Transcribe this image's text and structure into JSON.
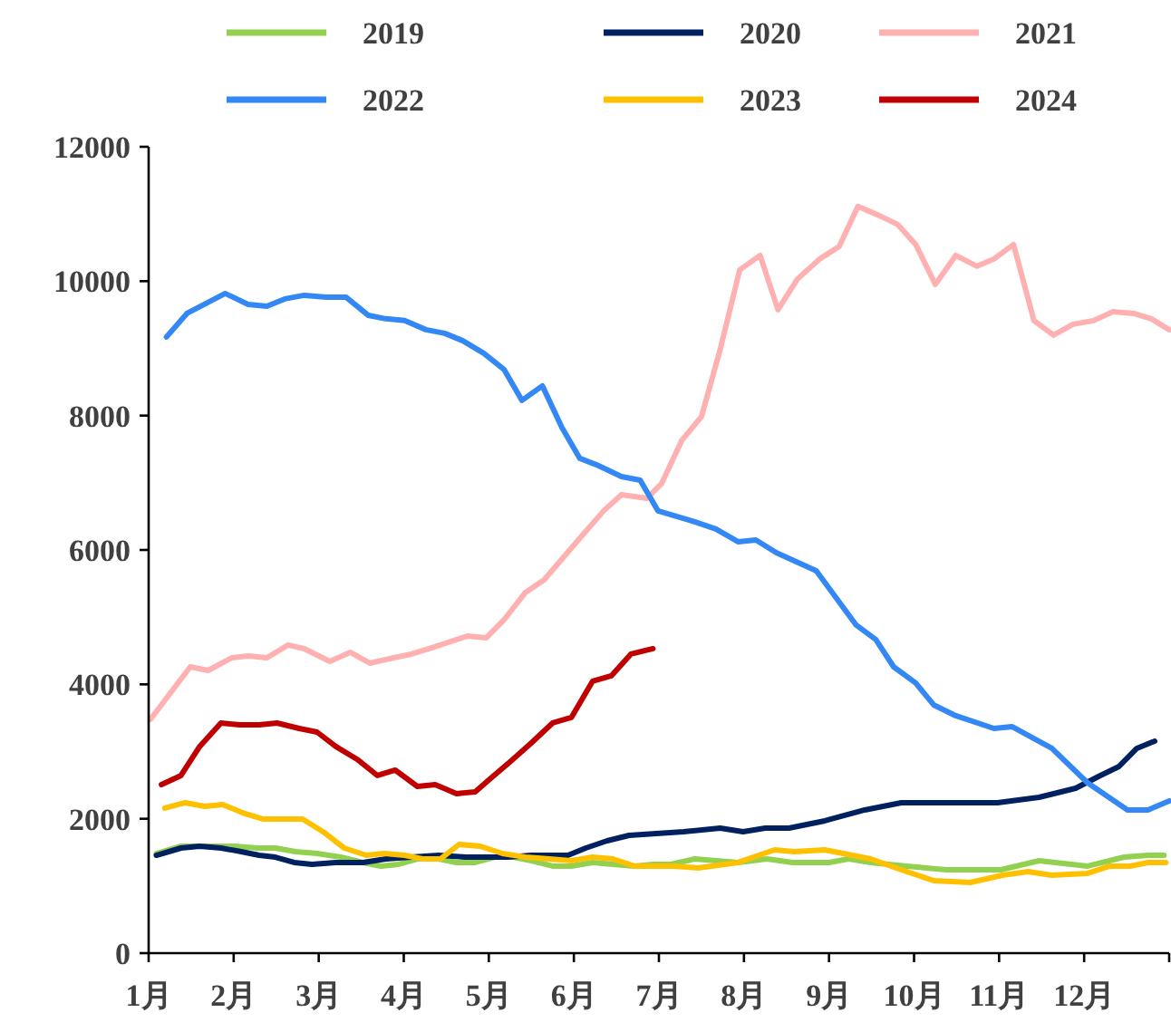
{
  "chart_data": {
    "type": "line",
    "legend": "top",
    "grid": false,
    "marker": "none",
    "line_style": "solid",
    "xlim": [
      1,
      13
    ],
    "xticks": [
      {
        "value": 1,
        "label": "1月"
      },
      {
        "value": 2,
        "label": "2月"
      },
      {
        "value": 3,
        "label": "3月"
      },
      {
        "value": 4,
        "label": "4月"
      },
      {
        "value": 5,
        "label": "5月"
      },
      {
        "value": 6,
        "label": "6月"
      },
      {
        "value": 7,
        "label": "7月"
      },
      {
        "value": 8,
        "label": "8月"
      },
      {
        "value": 9,
        "label": "9月"
      },
      {
        "value": 10,
        "label": "10月"
      },
      {
        "value": 11,
        "label": "11月"
      },
      {
        "value": 12,
        "label": "12月"
      },
      {
        "value": 13,
        "label": null
      }
    ],
    "ylim": [
      0,
      12000
    ],
    "yticks": [
      0,
      2000,
      4000,
      6000,
      8000,
      10000,
      12000
    ],
    "series": [
      {
        "name": "2019",
        "color": "#92d050",
        "x": [
          1.09,
          1.38,
          1.6,
          2.02,
          2.28,
          2.49,
          2.73,
          2.98,
          3.26,
          3.52,
          3.73,
          3.94,
          4.16,
          4.41,
          4.62,
          4.84,
          5.07,
          5.29,
          5.5,
          5.75,
          5.97,
          6.22,
          6.46,
          6.71,
          6.93,
          7.14,
          7.42,
          7.93,
          8.27,
          8.57,
          9.0,
          9.23,
          9.49,
          9.91,
          10.38,
          11.02,
          11.47,
          12.04,
          12.47,
          12.75,
          12.94
        ],
        "values": [
          1483,
          1591,
          1591,
          1591,
          1564,
          1564,
          1510,
          1483,
          1429,
          1349,
          1295,
          1322,
          1402,
          1402,
          1349,
          1349,
          1429,
          1429,
          1375,
          1295,
          1295,
          1349,
          1322,
          1295,
          1322,
          1322,
          1402,
          1349,
          1402,
          1349,
          1349,
          1402,
          1349,
          1295,
          1241,
          1241,
          1375,
          1295,
          1429,
          1456,
          1456
        ]
      },
      {
        "name": "2020",
        "color": "#002060",
        "x": [
          1.09,
          1.38,
          1.6,
          1.85,
          2.09,
          2.3,
          2.49,
          2.71,
          2.92,
          3.2,
          3.52,
          3.79,
          4.09,
          4.41,
          4.73,
          4.97,
          5.22,
          5.5,
          5.93,
          6.14,
          6.39,
          6.65,
          6.97,
          7.29,
          7.72,
          7.99,
          8.25,
          8.53,
          8.95,
          9.42,
          9.85,
          10.28,
          10.98,
          11.47,
          11.9,
          12.19,
          12.41,
          12.62,
          12.83
        ],
        "values": [
          1456,
          1564,
          1591,
          1564,
          1510,
          1456,
          1429,
          1349,
          1322,
          1349,
          1349,
          1402,
          1429,
          1456,
          1429,
          1429,
          1429,
          1456,
          1456,
          1564,
          1672,
          1753,
          1780,
          1807,
          1861,
          1807,
          1861,
          1861,
          1969,
          2131,
          2239,
          2239,
          2239,
          2319,
          2454,
          2643,
          2778,
          3048,
          3155
        ]
      },
      {
        "name": "2021",
        "color": "#ffb0b0",
        "x": [
          1.02,
          1.49,
          1.7,
          1.98,
          2.17,
          2.39,
          2.64,
          2.83,
          3.13,
          3.37,
          3.6,
          3.88,
          4.09,
          4.3,
          4.75,
          4.97,
          5.18,
          5.43,
          5.65,
          6.07,
          6.35,
          6.56,
          6.86,
          7.03,
          7.27,
          7.5,
          7.72,
          7.95,
          8.19,
          8.4,
          8.63,
          8.89,
          9.12,
          9.34,
          9.59,
          9.81,
          10.02,
          10.25,
          10.49,
          10.74,
          10.94,
          11.17,
          11.41,
          11.64,
          11.87,
          12.11,
          12.34,
          12.58,
          12.79,
          13.0
        ],
        "values": [
          3479,
          4261,
          4207,
          4396,
          4423,
          4396,
          4585,
          4531,
          4342,
          4477,
          4315,
          4396,
          4450,
          4531,
          4720,
          4693,
          4962,
          5367,
          5556,
          6176,
          6581,
          6823,
          6769,
          6985,
          7633,
          7983,
          8981,
          10168,
          10383,
          9574,
          10033,
          10330,
          10518,
          11112,
          10977,
          10842,
          10545,
          9952,
          10383,
          10222,
          10330,
          10545,
          9413,
          9197,
          9359,
          9413,
          9547,
          9520,
          9440,
          9278
        ]
      },
      {
        "name": "2022",
        "color": "#3388f5",
        "x": [
          1.21,
          1.45,
          1.9,
          2.17,
          2.39,
          2.6,
          2.83,
          3.09,
          3.32,
          3.58,
          3.79,
          4.01,
          4.26,
          4.48,
          4.69,
          4.94,
          5.18,
          5.39,
          5.63,
          5.86,
          6.07,
          6.29,
          6.56,
          6.78,
          6.99,
          7.42,
          7.67,
          7.93,
          8.14,
          8.38,
          8.85,
          9.32,
          9.55,
          9.76,
          10.02,
          10.23,
          10.49,
          10.94,
          11.15,
          11.62,
          12.04,
          12.51,
          12.75,
          13.0
        ],
        "values": [
          9170,
          9520,
          9817,
          9655,
          9628,
          9736,
          9790,
          9763,
          9763,
          9493,
          9440,
          9413,
          9278,
          9224,
          9116,
          8927,
          8684,
          8226,
          8442,
          7821,
          7363,
          7255,
          7093,
          7039,
          6580,
          6419,
          6311,
          6122,
          6149,
          5960,
          5691,
          4882,
          4666,
          4261,
          4019,
          3695,
          3533,
          3344,
          3371,
          3048,
          2535,
          2131,
          2131,
          2265
        ]
      },
      {
        "name": "2023",
        "color": "#ffc000",
        "x": [
          1.19,
          1.43,
          1.66,
          1.87,
          2.13,
          2.34,
          2.6,
          2.81,
          3.05,
          3.3,
          3.56,
          3.77,
          4.01,
          4.22,
          4.43,
          4.65,
          4.9,
          5.16,
          5.43,
          5.71,
          5.97,
          6.22,
          6.46,
          6.71,
          6.93,
          7.18,
          7.46,
          7.93,
          8.36,
          8.59,
          8.95,
          9.49,
          9.85,
          10.23,
          10.66,
          11.04,
          11.34,
          11.62,
          12.04,
          12.3,
          12.54,
          12.75,
          12.96
        ],
        "values": [
          2158,
          2239,
          2185,
          2212,
          2077,
          1996,
          1996,
          1996,
          1807,
          1564,
          1456,
          1483,
          1456,
          1402,
          1402,
          1618,
          1591,
          1483,
          1429,
          1402,
          1375,
          1429,
          1402,
          1295,
          1295,
          1295,
          1268,
          1349,
          1537,
          1510,
          1537,
          1402,
          1241,
          1079,
          1052,
          1160,
          1214,
          1160,
          1187,
          1295,
          1295,
          1349,
          1349
        ]
      },
      {
        "name": "2024",
        "color": "#c00000",
        "x": [
          1.15,
          1.38,
          1.6,
          1.85,
          2.07,
          2.3,
          2.51,
          2.77,
          2.98,
          3.2,
          3.45,
          3.69,
          3.9,
          4.16,
          4.37,
          4.62,
          4.84,
          5.01,
          5.26,
          5.5,
          5.75,
          5.97,
          6.22,
          6.44,
          6.67,
          6.93
        ],
        "values": [
          2508,
          2643,
          3075,
          3425,
          3398,
          3398,
          3425,
          3344,
          3290,
          3075,
          2886,
          2643,
          2724,
          2481,
          2508,
          2373,
          2400,
          2589,
          2859,
          3129,
          3425,
          3506,
          4046,
          4126,
          4450,
          4531
        ]
      }
    ]
  }
}
